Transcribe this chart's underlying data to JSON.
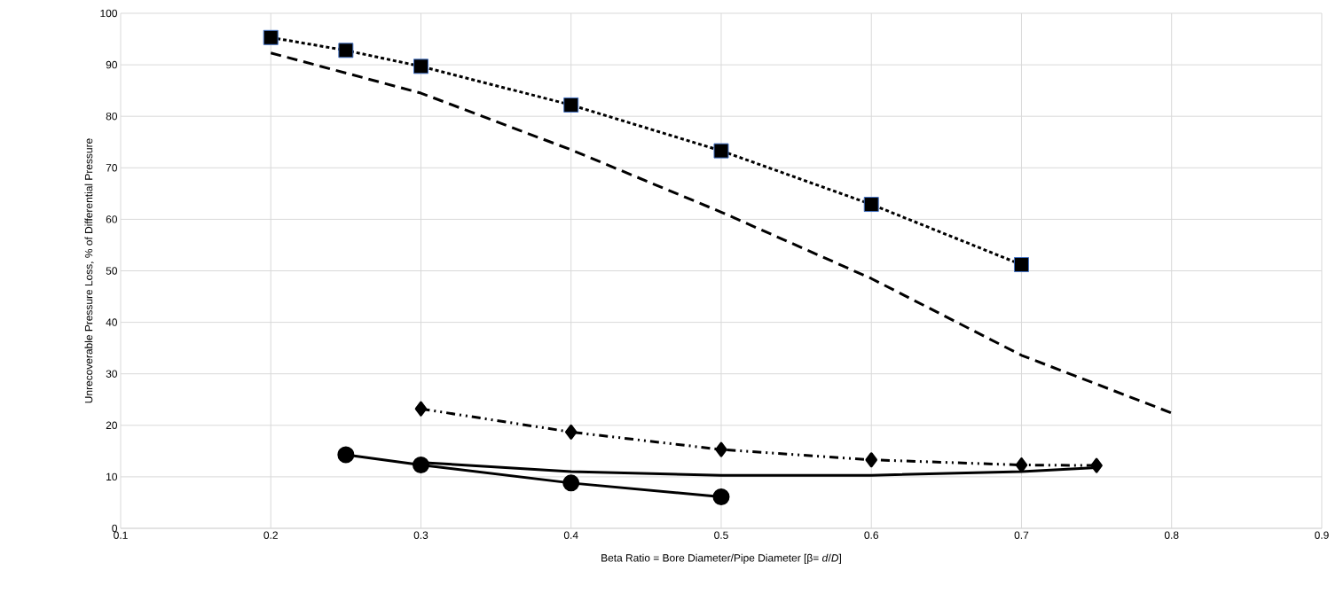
{
  "chart_data": {
    "type": "line",
    "xlabel": "Beta Ratio = Bore Diameter/Pipe Diameter [β= *d*/*D*]",
    "ylabel": "Unrecoverable Pressure Loss, % of Differential Pressure",
    "xlim": [
      0.1,
      0.9
    ],
    "xticks": [
      0.1,
      0.2,
      0.3,
      0.4,
      0.5,
      0.6,
      0.7,
      0.8,
      0.9
    ],
    "ylim": [
      0,
      100
    ],
    "yticks": [
      0,
      10,
      20,
      30,
      40,
      50,
      60,
      70,
      80,
      90,
      100
    ],
    "grid": true,
    "series": [
      {
        "color": "#000000",
        "marker": "square",
        "line_style": "dotted",
        "x": [
          0.2,
          0.25,
          0.3,
          0.4,
          0.5,
          0.6,
          0.7
        ],
        "values": [
          95.3,
          92.8,
          89.7,
          82.2,
          73.3,
          62.9,
          51.2
        ]
      },
      {
        "color": "#000000",
        "marker": "none",
        "line_style": "dashed",
        "x": [
          0.2,
          0.3,
          0.4,
          0.5,
          0.6,
          0.7,
          0.8
        ],
        "values": [
          92.3,
          84.5,
          73.5,
          61.4,
          48.5,
          33.6,
          22.4
        ]
      },
      {
        "color": "#000000",
        "marker": "diamond",
        "line_style": "dashdotted",
        "x": [
          0.3,
          0.4,
          0.5,
          0.6,
          0.7,
          0.75
        ],
        "values": [
          23.2,
          18.7,
          15.3,
          13.3,
          12.3,
          12.2
        ]
      },
      {
        "color": "#000000",
        "marker": "none",
        "line_style": "solid",
        "x": [
          0.3,
          0.4,
          0.5,
          0.6,
          0.7,
          0.75
        ],
        "values": [
          12.8,
          11.0,
          10.3,
          10.3,
          11.0,
          11.8
        ]
      },
      {
        "color": "#000000",
        "marker": "circle",
        "line_style": "solid",
        "x": [
          0.25,
          0.3,
          0.4,
          0.5
        ],
        "values": [
          14.3,
          12.3,
          8.8,
          6.1
        ]
      }
    ]
  }
}
